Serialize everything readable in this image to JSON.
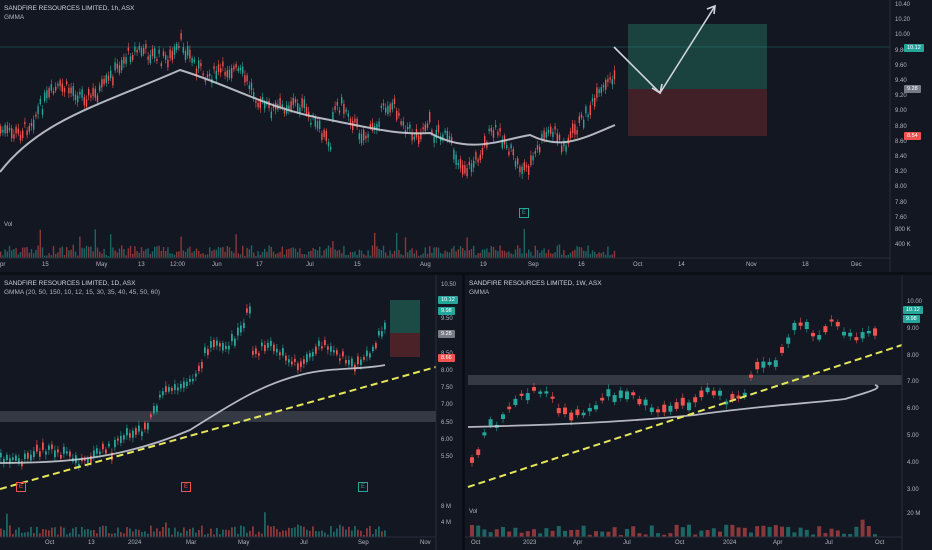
{
  "top_chart": {
    "title": "SANDFIRE RESOURCES LIMITED, 1h, ASX",
    "indicator": "GMMA",
    "volume_label": "Vol",
    "price_ticks": [
      "10.40",
      "10.20",
      "10.00",
      "9.80",
      "9.60",
      "9.40",
      "9.20",
      "9.00",
      "8.80",
      "8.60",
      "8.40",
      "8.20",
      "8.00",
      "7.80",
      "7.60"
    ],
    "volume_ticks": [
      "800 K",
      "400 K"
    ],
    "time_ticks": [
      "pr",
      "15",
      "May",
      "13",
      "12:00",
      "Jun",
      "17",
      "Jul",
      "15",
      "Aug",
      "19",
      "Sep",
      "16",
      "Oct",
      "14",
      "Nov",
      "18",
      "Dec"
    ],
    "price_tags": {
      "price": "10.12",
      "target": "9.98",
      "stop": "9.28",
      "low": "8.54"
    },
    "event_marker": "E"
  },
  "bottom_left_chart": {
    "title": "SANDFIRE RESOURCES LIMITED, 1D, ASX",
    "indicator": "GMMA (20, 50, 150, 10, 12, 15, 30, 35, 40, 45, 50, 60)",
    "price_ticks": [
      "10.50",
      "10.00",
      "9.50",
      "9.00",
      "8.50",
      "8.00",
      "7.50",
      "7.00",
      "6.50",
      "6.00",
      "5.50"
    ],
    "volume_ticks": [
      "8 M",
      "4 M"
    ],
    "time_ticks": [
      "Oct",
      "13",
      "2024",
      "Mar",
      "May",
      "Jul",
      "Sep",
      "Nov"
    ],
    "price_tags": {
      "price": "10.12",
      "target": "9.98",
      "stop": "9.28",
      "low": "8.66"
    },
    "event_markers": [
      "E",
      "E",
      "E"
    ]
  },
  "bottom_right_chart": {
    "title": "SANDFIRE RESOURCES LIMITED, 1W, ASX",
    "indicator": "GMMA",
    "volume_label": "Vol",
    "price_ticks": [
      "10.00",
      "9.00",
      "8.00",
      "7.00",
      "6.00",
      "5.00",
      "4.00",
      "3.00"
    ],
    "volume_ticks": [
      "20 M"
    ],
    "time_ticks": [
      "Oct",
      "2023",
      "Apr",
      "Jul",
      "Oct",
      "2024",
      "Apr",
      "Jul",
      "Oct"
    ],
    "price_tags": {
      "price": "10.12",
      "target": "9.98"
    }
  },
  "colors": {
    "bg": "#131722",
    "up": "#26a69a",
    "down": "#ef5350",
    "ma": "#d1d4dc",
    "trend": "#e6e65a",
    "zone": "#3a3d47",
    "profit": "#1c4a44",
    "loss": "#4a2228"
  }
}
